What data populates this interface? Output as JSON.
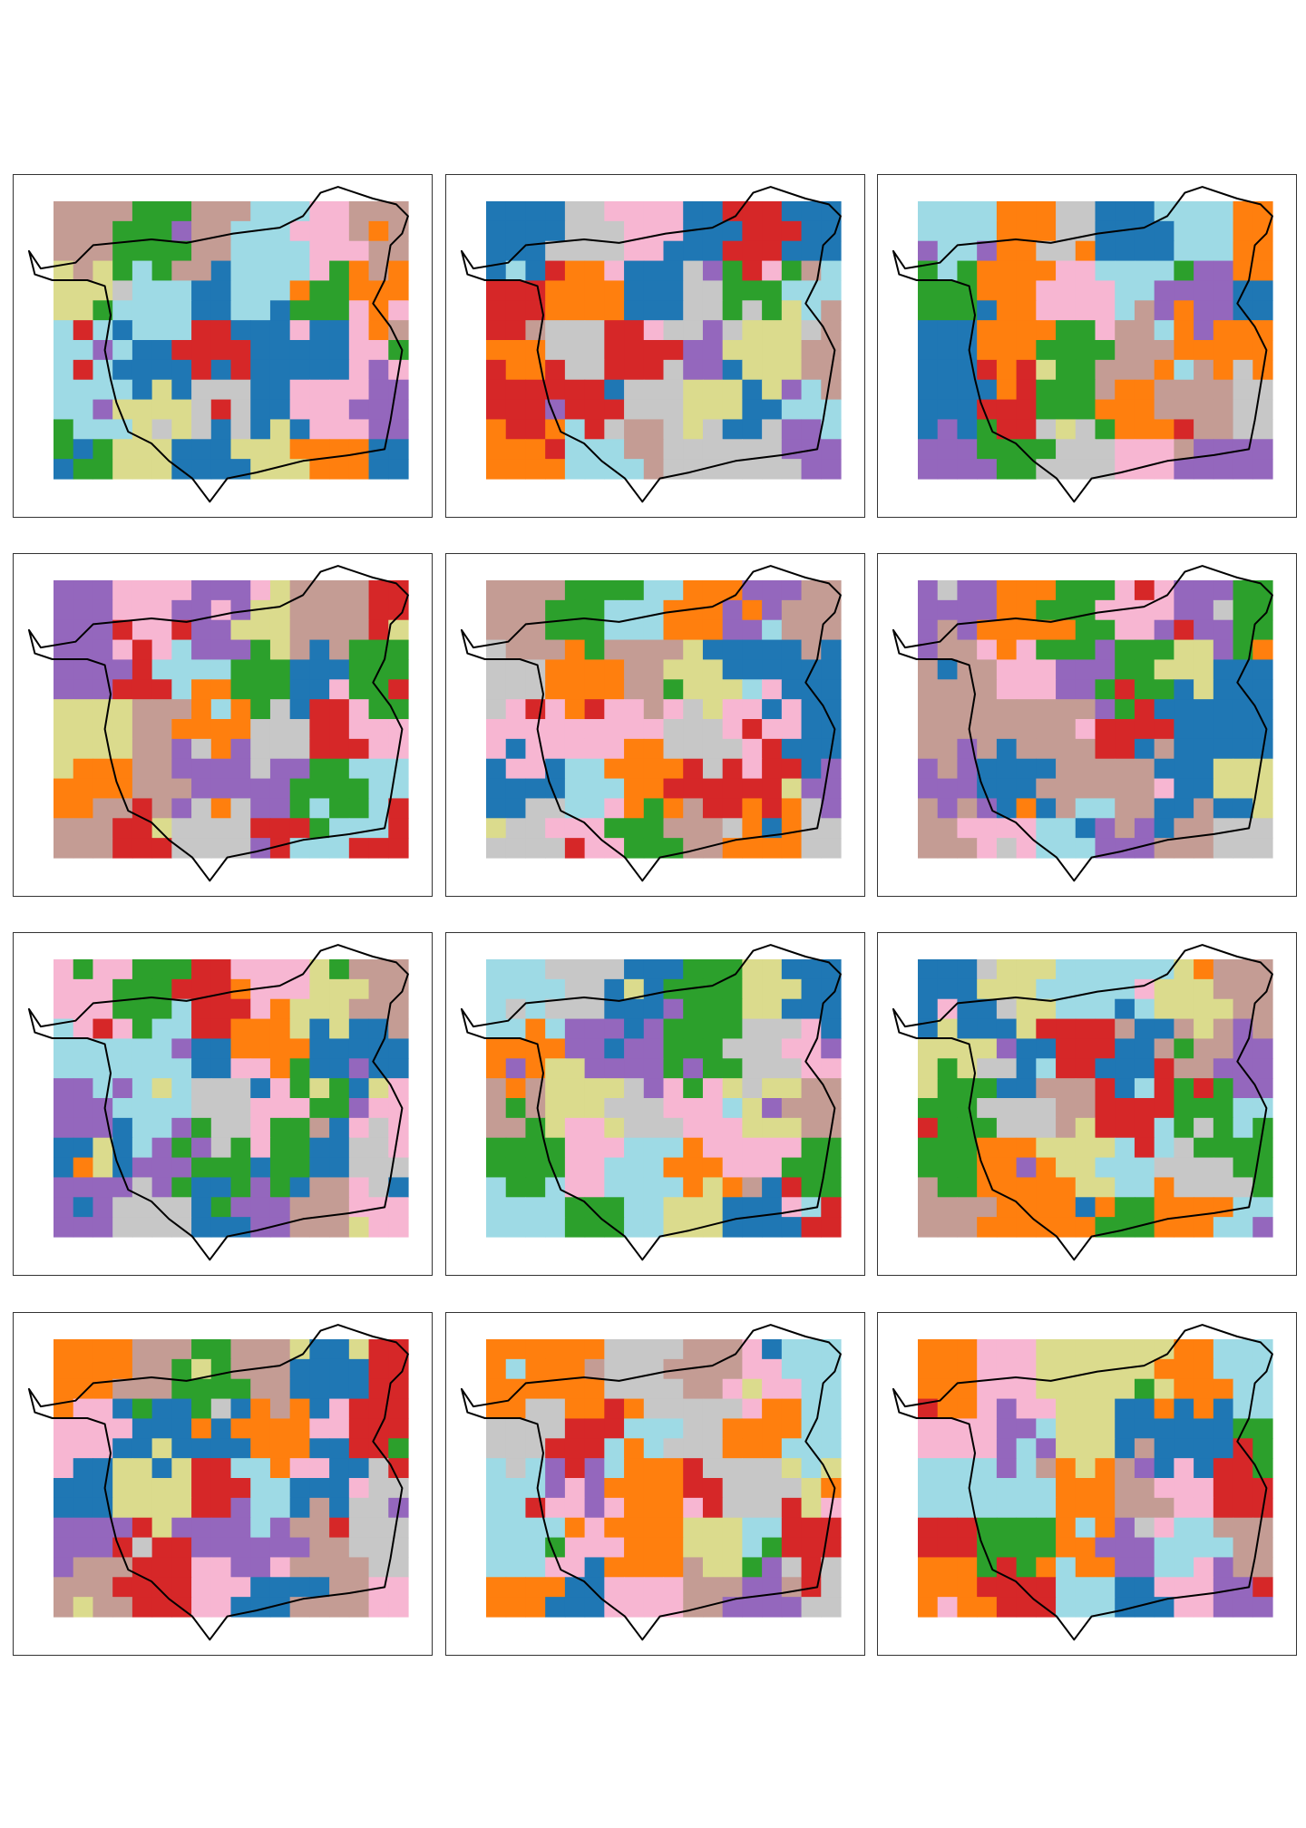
{
  "figure": {
    "palette": [
      "#1f77b4",
      "#ff7f0e",
      "#2ca02c",
      "#d62728",
      "#9467bd",
      "#c49c94",
      "#f7b6d2",
      "#c7c7c7",
      "#dbdb8d",
      "#9edae5"
    ]
  }
}
